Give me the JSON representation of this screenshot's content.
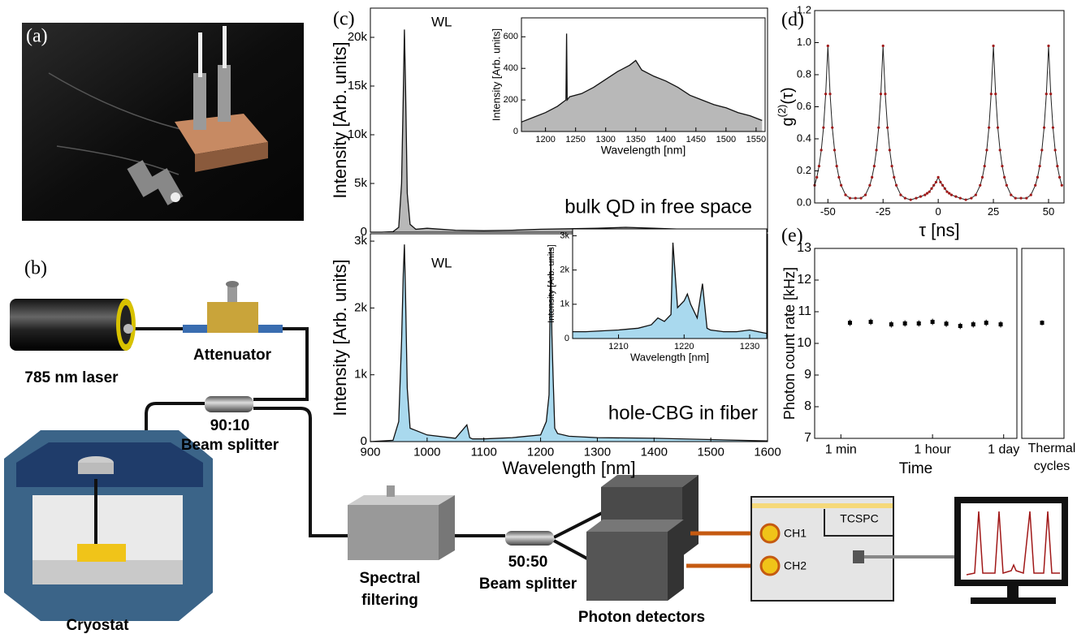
{
  "panel_labels": [
    "(a)",
    "(b)",
    "(c)",
    "(d)",
    "(e)"
  ],
  "diagram": {
    "laser": "785 nm laser",
    "attenuator": "Attenuator",
    "splitter_1": {
      "ratio": "90:10",
      "label": "Beam splitter"
    },
    "cryostat": "Cryostat",
    "filter": [
      "Spectral",
      "filtering"
    ],
    "splitter_2": {
      "ratio": "50:50",
      "label": "Beam splitter"
    },
    "detectors": "Photon detectors",
    "channels": [
      "CH1",
      "CH2"
    ],
    "tcspc": "TCSPC"
  },
  "chart_data": [
    {
      "type": "area",
      "ylabel": "Intensity [Arb. units]",
      "annotations": [
        "WL",
        "bulk QD in free space"
      ],
      "x": [
        900,
        920,
        940,
        950,
        955,
        958,
        960,
        962,
        965,
        970,
        980,
        1000,
        1050,
        1100,
        1150,
        1200,
        1250,
        1300,
        1350,
        1400,
        1450,
        1500,
        1550,
        1600
      ],
      "values": [
        0,
        0,
        50,
        500,
        5000,
        14000,
        20800,
        15000,
        4000,
        800,
        300,
        400,
        200,
        150,
        200,
        300,
        350,
        400,
        500,
        400,
        300,
        250,
        200,
        100
      ],
      "color": "#b8b8b8",
      "xlim": [
        900,
        1600
      ],
      "ylim": [
        0,
        23000
      ],
      "yticks": [
        0,
        {
          "value": 5000,
          "label": "5k"
        },
        {
          "value": 10000,
          "label": "10k"
        },
        {
          "value": 15000,
          "label": "15k"
        },
        {
          "value": 20000,
          "label": "20k"
        }
      ]
    },
    {
      "type": "area",
      "xlabel": "Wavelength [nm]",
      "ylabel": "Intensity [Arb. units]",
      "x": [
        1160,
        1180,
        1200,
        1220,
        1234,
        1235,
        1236,
        1240,
        1260,
        1280,
        1300,
        1320,
        1340,
        1350,
        1360,
        1380,
        1400,
        1420,
        1440,
        1460,
        1480,
        1500,
        1520,
        1540,
        1560
      ],
      "values": [
        60,
        90,
        120,
        160,
        200,
        620,
        200,
        220,
        240,
        280,
        330,
        380,
        420,
        450,
        390,
        350,
        320,
        280,
        230,
        200,
        170,
        150,
        120,
        100,
        70
      ],
      "color": "#b8b8b8",
      "xlim": [
        1160,
        1565
      ],
      "ylim": [
        0,
        720
      ],
      "xticks": [
        1200,
        1250,
        1300,
        1350,
        1400,
        1450,
        1500,
        1550
      ],
      "yticks": [
        0,
        200,
        400,
        600
      ]
    },
    {
      "type": "area",
      "xlabel": "Wavelength [nm]",
      "ylabel": "Intensity [Arb. units]",
      "annotations": [
        "WL",
        "hole-CBG in fiber"
      ],
      "x": [
        900,
        940,
        950,
        955,
        958,
        960,
        962,
        965,
        970,
        1000,
        1050,
        1070,
        1075,
        1080,
        1100,
        1150,
        1200,
        1210,
        1215,
        1218,
        1220,
        1222,
        1225,
        1230,
        1250,
        1300,
        1400,
        1500,
        1600
      ],
      "values": [
        0,
        20,
        300,
        1500,
        2500,
        2950,
        2200,
        800,
        200,
        100,
        50,
        250,
        60,
        40,
        40,
        60,
        100,
        300,
        700,
        2900,
        1600,
        1000,
        200,
        120,
        80,
        60,
        50,
        30,
        10
      ],
      "color": "#a9d9ee",
      "xlim": [
        900,
        1600
      ],
      "ylim": [
        0,
        3110
      ],
      "xticks": [
        900,
        1000,
        1100,
        1200,
        1300,
        1400,
        1500,
        1600
      ],
      "yticks": [
        0,
        {
          "value": 1000,
          "label": "1k"
        },
        {
          "value": 2000,
          "label": "2k"
        },
        {
          "value": 3000,
          "label": "3k"
        }
      ]
    },
    {
      "type": "area",
      "xlabel": "Wavelength [nm]",
      "ylabel": "Intensity [Arb. units]",
      "x": [
        1203,
        1205,
        1210,
        1213,
        1215,
        1216,
        1217,
        1218,
        1218.3,
        1219,
        1220,
        1220.5,
        1221,
        1222,
        1222.8,
        1223.5,
        1224,
        1226,
        1228,
        1230,
        1232.6
      ],
      "values": [
        200,
        200,
        250,
        300,
        400,
        600,
        500,
        700,
        2800,
        900,
        1100,
        1300,
        1000,
        600,
        1600,
        300,
        250,
        200,
        200,
        250,
        150
      ],
      "color": "#a9d9ee",
      "xlim": [
        1203,
        1232.6
      ],
      "ylim": [
        0,
        3200
      ],
      "xticks": [
        1210,
        1220,
        1230
      ],
      "yticks": [
        0,
        {
          "value": 1000,
          "label": "1k"
        },
        {
          "value": 2000,
          "label": "2k"
        },
        {
          "value": 3000,
          "label": "3k"
        }
      ]
    },
    {
      "type": "line",
      "xlabel": "τ [ns]",
      "ylabel": [
        "g",
        "(2)",
        "(τ)"
      ],
      "x": [
        -56,
        -55,
        -54,
        -53,
        -52,
        -51,
        -50,
        -49,
        -48,
        -47,
        -46,
        -45,
        -44,
        -42,
        -40,
        -37.5,
        -35,
        -33,
        -31,
        -30,
        -29,
        -28,
        -27,
        -26,
        -25,
        -24,
        -23,
        -22,
        -21,
        -20,
        -19,
        -17,
        -15,
        -12.5,
        -10,
        -8,
        -6,
        -5,
        -4,
        -3,
        -2,
        -1,
        0,
        1,
        2,
        3,
        4,
        5,
        6,
        8,
        10,
        12.5,
        15,
        17,
        19,
        20,
        21,
        22,
        23,
        24,
        25,
        26,
        27,
        28,
        29,
        30,
        31,
        33,
        35,
        37.5,
        40,
        42,
        44,
        45,
        46,
        47,
        48,
        49,
        50,
        51,
        52,
        53,
        54,
        55,
        56
      ],
      "values": [
        0.11,
        0.16,
        0.23,
        0.33,
        0.47,
        0.68,
        0.98,
        0.68,
        0.47,
        0.33,
        0.23,
        0.16,
        0.11,
        0.05,
        0.03,
        0.03,
        0.03,
        0.05,
        0.11,
        0.16,
        0.23,
        0.33,
        0.47,
        0.68,
        0.98,
        0.68,
        0.47,
        0.33,
        0.23,
        0.16,
        0.11,
        0.05,
        0.03,
        0.02,
        0.03,
        0.04,
        0.05,
        0.06,
        0.07,
        0.09,
        0.11,
        0.13,
        0.16,
        0.13,
        0.11,
        0.09,
        0.07,
        0.06,
        0.05,
        0.04,
        0.03,
        0.02,
        0.03,
        0.05,
        0.11,
        0.16,
        0.23,
        0.33,
        0.47,
        0.68,
        0.98,
        0.68,
        0.47,
        0.33,
        0.23,
        0.16,
        0.11,
        0.05,
        0.03,
        0.03,
        0.03,
        0.05,
        0.11,
        0.16,
        0.23,
        0.33,
        0.47,
        0.68,
        0.98,
        0.68,
        0.47,
        0.33,
        0.23,
        0.16,
        0.11
      ],
      "color": "#a01818",
      "xlim": [
        -56,
        57
      ],
      "ylim": [
        0,
        1.2
      ],
      "xticks": [
        -50,
        -25,
        0,
        25,
        50
      ],
      "yticks": [
        {
          "value": 0,
          "label": "0.0"
        },
        0.2,
        0.4,
        0.6,
        0.8,
        {
          "value": 1,
          "label": "1.0"
        },
        1.2
      ]
    },
    {
      "type": "scatter",
      "xlabel": "Time",
      "ylabel": "Photon count rate [kHz]",
      "xlog": true,
      "x": [
        1.5,
        3.8,
        9.5,
        17.5,
        32.5,
        60,
        111,
        207,
        370,
        660,
        1260
      ],
      "values": [
        10.65,
        10.68,
        10.6,
        10.63,
        10.63,
        10.68,
        10.62,
        10.55,
        10.6,
        10.65,
        10.6
      ],
      "errors": [
        0.1,
        0.1,
        0.1,
        0.1,
        0.1,
        0.1,
        0.1,
        0.1,
        0.1,
        0.1,
        0.1
      ],
      "color": "#000000",
      "xlim": [
        0.31,
        2600
      ],
      "ylim": [
        7,
        13
      ],
      "xticks": [
        {
          "value": 1,
          "label": "1 min"
        },
        {
          "value": 60,
          "label": "1 hour"
        },
        {
          "value": 1440,
          "label": "1 day"
        }
      ],
      "yticks": [
        7,
        8,
        9,
        10,
        11,
        12,
        13
      ],
      "thermal_cycles": {
        "label": [
          "Thermal",
          "cycles"
        ],
        "value": 10.65,
        "error": 0.08
      }
    }
  ]
}
